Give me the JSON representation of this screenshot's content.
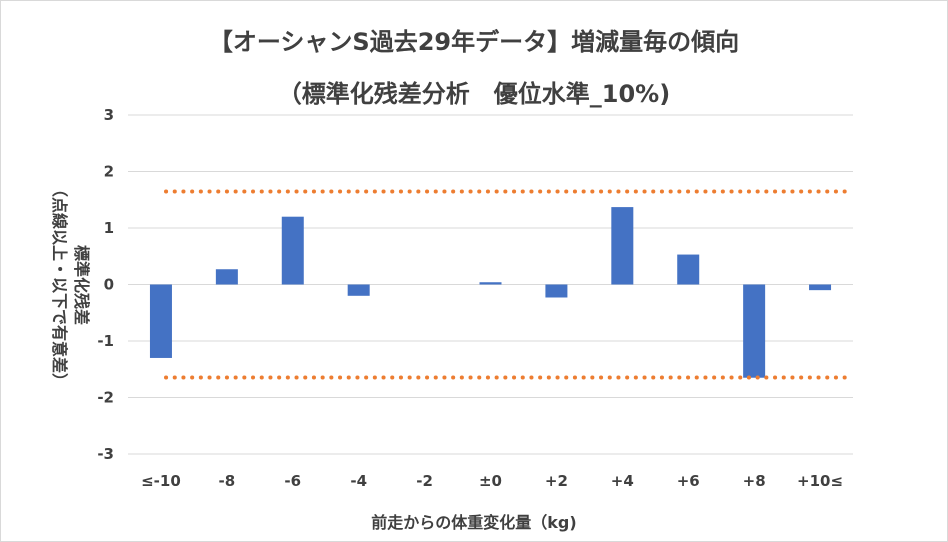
{
  "chart_data": {
    "type": "bar",
    "title_line1": "【オーシャンS過去29年データ】増減量毎の傾向",
    "title_line2": "（標準化残差分析　優位水準_10%)",
    "xlabel": "前走からの体重変化量（kg)",
    "ylabel_line1": "標準化残差",
    "ylabel_line2": "（点線以上・以下で有意差）",
    "categories": [
      "≤-10",
      "-8",
      "-6",
      "-4",
      "-2",
      "±0",
      "+2",
      "+4",
      "+6",
      "+8",
      "+10≤"
    ],
    "values": [
      -1.3,
      0.27,
      1.2,
      -0.2,
      0,
      0.04,
      -0.23,
      1.37,
      0.53,
      -1.65,
      -0.1
    ],
    "ylim": [
      -3,
      3
    ],
    "yticks": [
      3,
      2,
      1,
      0,
      -1,
      -2,
      -3
    ],
    "significance_threshold": 1.645,
    "bar_color": "#4472c4",
    "threshold_color": "#ed7d31",
    "grid": true
  }
}
